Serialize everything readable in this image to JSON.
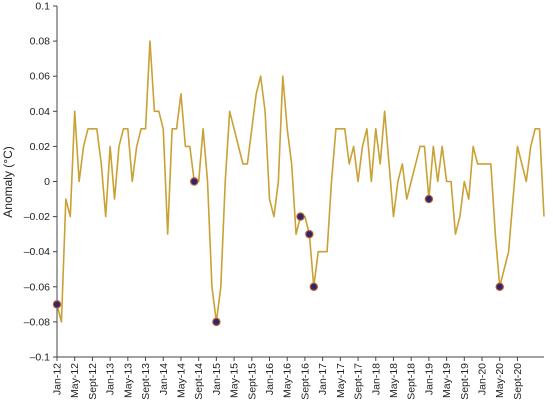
{
  "chart_data": {
    "type": "line",
    "title": "",
    "xlabel": "",
    "ylabel": "Anomaly (°C)",
    "ylim": [
      -0.1,
      0.1
    ],
    "y_ticks": [
      "0.1",
      "0.08",
      "0.06",
      "0.04",
      "0.02",
      "0",
      "–0.02",
      "–0.04",
      "–0.06",
      "–0.08",
      "–0.1"
    ],
    "x_ticks": [
      "Jan-12",
      "May-12",
      "Sept-12",
      "Jan-13",
      "May-13",
      "Sept-13",
      "Jan-14",
      "May-14",
      "Sept-14",
      "Jan-15",
      "May-15",
      "Sept-15",
      "Jan-16",
      "May-16",
      "Sept-16",
      "Jan-17",
      "May-17",
      "Sept-17",
      "Jan-18",
      "May-18",
      "Sept-18",
      "Jan-19",
      "May-19",
      "Sept-19",
      "Jan-20",
      "May-20",
      "Sept-20"
    ],
    "grid": false,
    "legend": "none",
    "line_color": "#C9A135",
    "marker_fill": "#2B2670",
    "marker_edge": "#B8572A",
    "series": [
      {
        "values": [
          -0.07,
          -0.08,
          -0.01,
          -0.02,
          0.04,
          0.0,
          0.02,
          0.03,
          0.03,
          0.03,
          0.01,
          -0.02,
          0.02,
          -0.01,
          0.02,
          0.03,
          0.03,
          0.0,
          0.02,
          0.03,
          0.03,
          0.08,
          0.04,
          0.04,
          0.03,
          -0.03,
          0.03,
          0.03,
          0.05,
          0.02,
          0.02,
          0.0,
          0.0,
          0.03,
          0.0,
          -0.06,
          -0.08,
          -0.06,
          0.0,
          0.04,
          0.03,
          0.02,
          0.01,
          0.01,
          0.03,
          0.05,
          0.06,
          0.04,
          -0.01,
          -0.02,
          0.0,
          0.06,
          0.03,
          0.01,
          -0.03,
          -0.02,
          -0.02,
          -0.03,
          -0.06,
          -0.04,
          -0.04,
          -0.04,
          0.0,
          0.03,
          0.03,
          0.03,
          0.01,
          0.02,
          0.0,
          0.02,
          0.03,
          0.0,
          0.03,
          0.01,
          0.04,
          0.01,
          -0.02,
          0.0,
          0.01,
          -0.01,
          0.0,
          0.01,
          0.02,
          0.02,
          -0.01,
          0.02,
          0.0,
          0.02,
          0.0,
          0.0,
          -0.03,
          -0.02,
          0.0,
          -0.01,
          0.02,
          0.01,
          0.01,
          0.01,
          0.01,
          -0.03,
          -0.06,
          -0.05,
          -0.04,
          -0.01,
          0.02,
          0.01,
          0.0,
          0.02,
          0.03,
          0.03,
          -0.02
        ],
        "markers": [
          0,
          31,
          36,
          55,
          57,
          58,
          84,
          100
        ]
      }
    ]
  }
}
